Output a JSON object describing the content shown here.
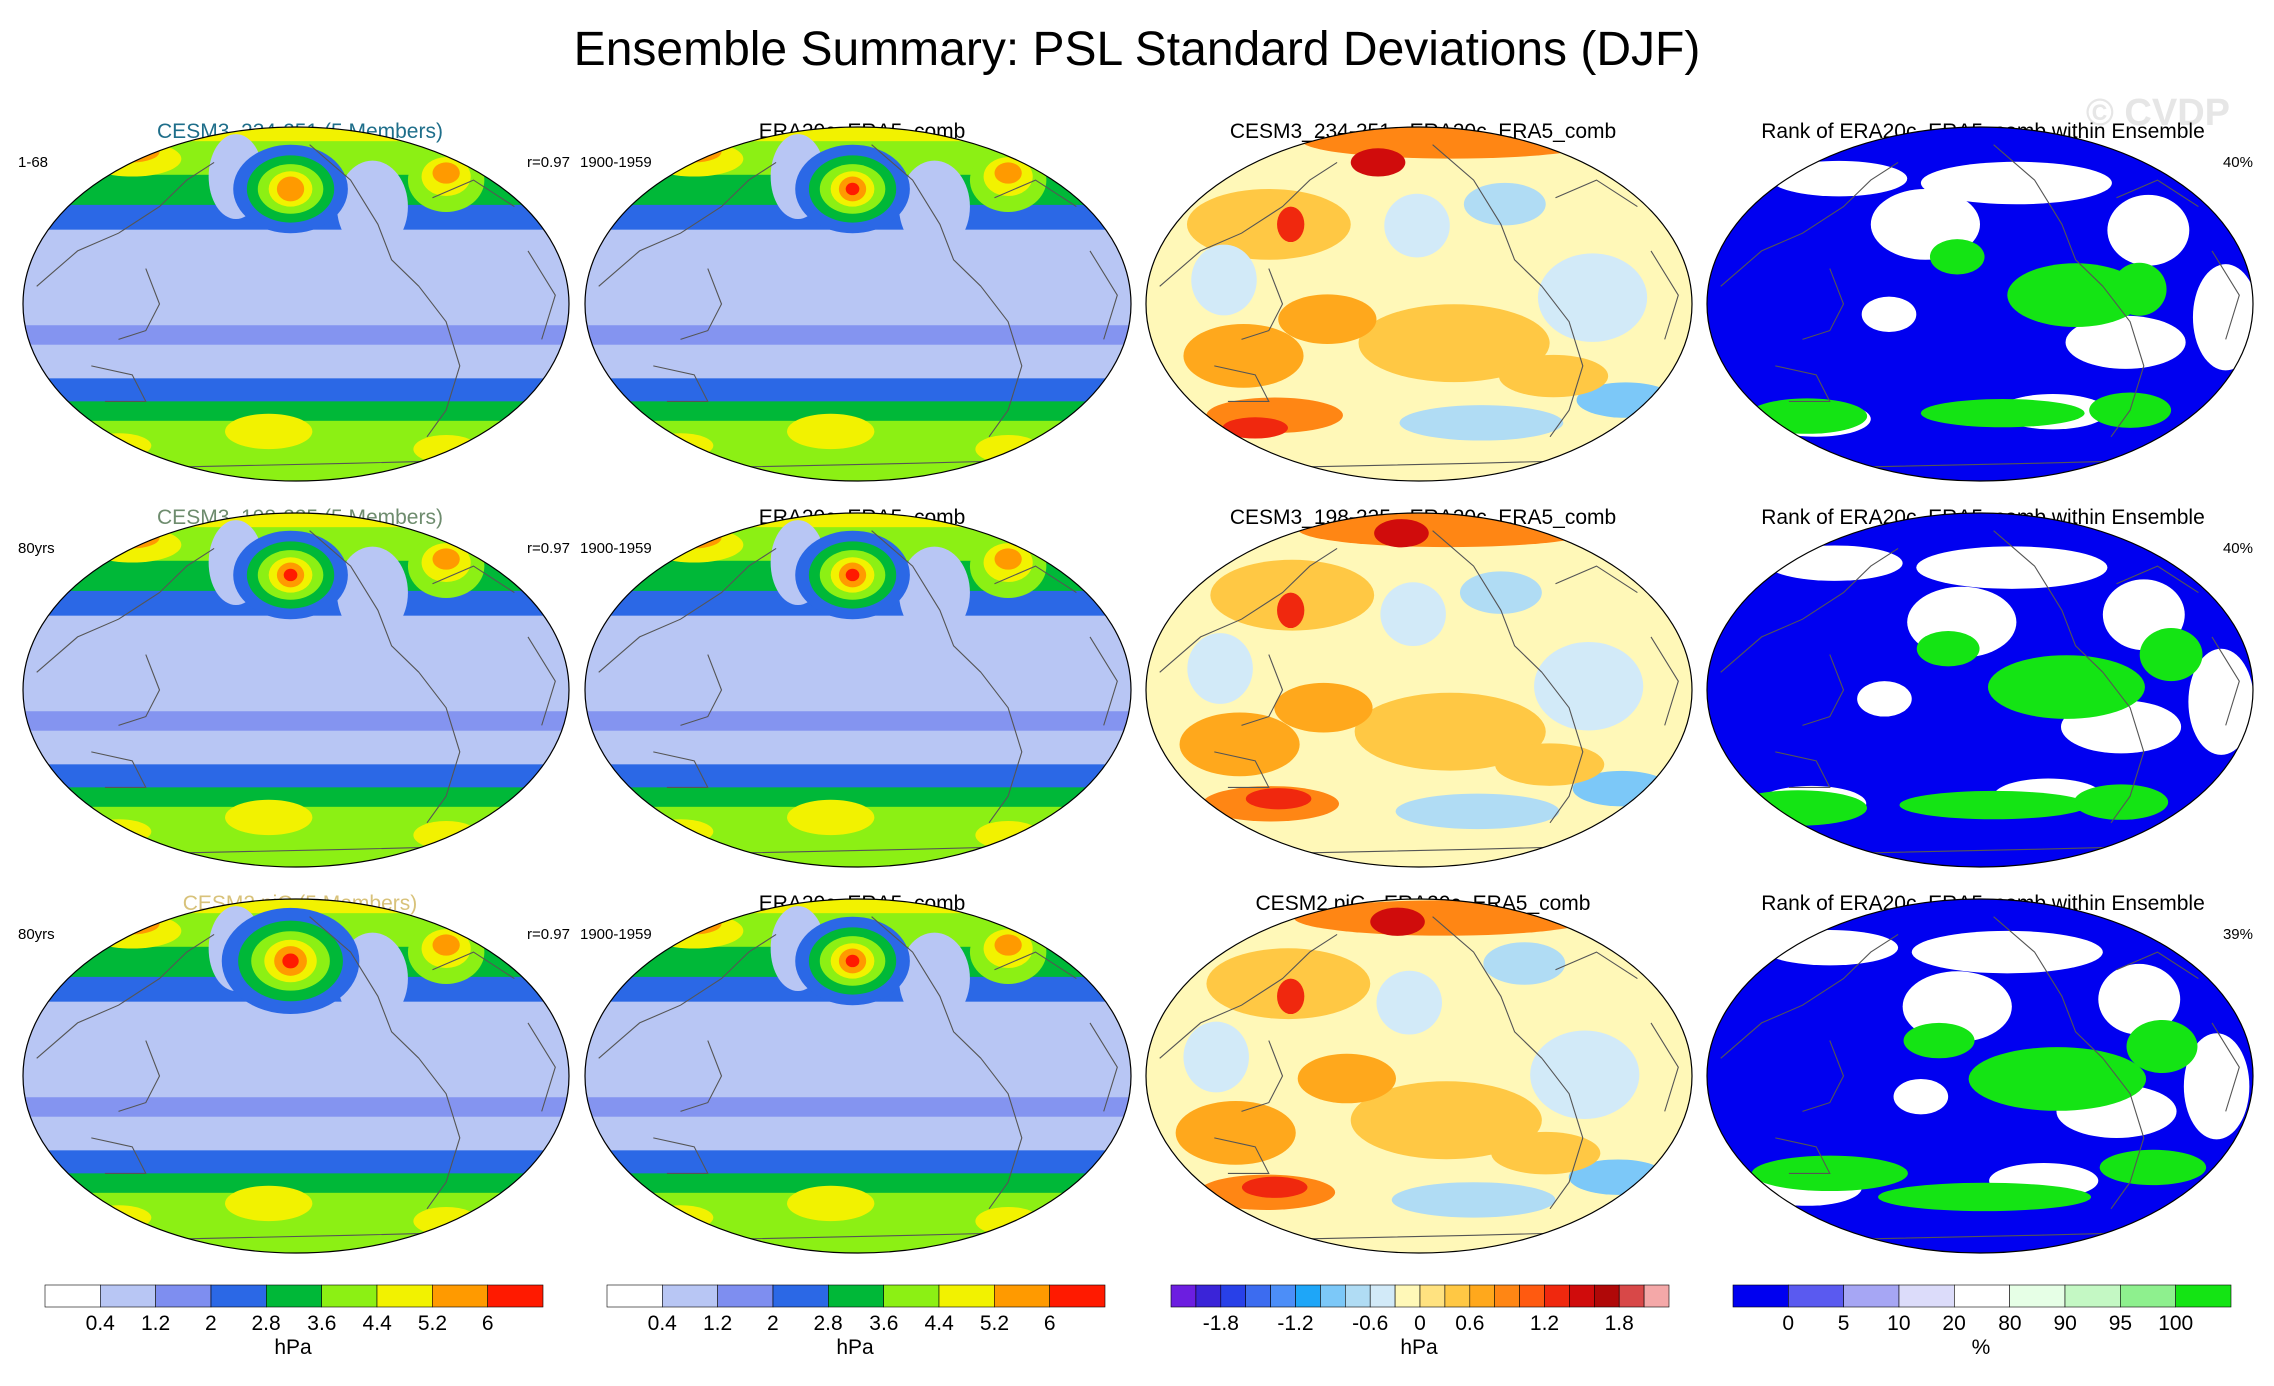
{
  "title": "Ensemble Summary: PSL Standard Deviations (DJF)",
  "watermark": "© CVDP",
  "colors": {
    "std_levels": [
      "#ffffff",
      "#b8c6f4",
      "#7e8ef0",
      "#2b68e6",
      "#00b838",
      "#8cf014",
      "#f2f200",
      "#ff9a00",
      "#ff1a00"
    ],
    "diff_levels": [
      "#6c1ee0",
      "#3a24d8",
      "#2840e8",
      "#3c6cf0",
      "#4c8ef8",
      "#1ea6f8",
      "#7cc8f8",
      "#b0dcf4",
      "#d2eaf8",
      "#fff8b8",
      "#ffe280",
      "#ffc844",
      "#ffa81c",
      "#ff8614",
      "#ff5a10",
      "#f0280e",
      "#d00c0c",
      "#b00808",
      "#d84848",
      "#f4a8a8"
    ],
    "rank_levels": [
      "#0000f0",
      "#5a5af0",
      "#a6a6f4",
      "#dcdcfa",
      "#ffffff",
      "#e6ffe6",
      "#c4f8c4",
      "#8ef08e",
      "#14e414"
    ]
  },
  "rows": [
    {
      "ensemble": {
        "title": "CESM3_234-251 (5 Members)",
        "title_color": "#1e6e8a",
        "left": "1-68",
        "right": "r=0.97"
      },
      "obs": {
        "title": "ERA20c_ERA5_comb",
        "left": "1900-1959"
      },
      "diff": {
        "title": "CESM3_234-251 - ERA20c_ERA5_comb"
      },
      "rank": {
        "title": "Rank of ERA20c_ERA5_comb within Ensemble",
        "right": "40%"
      }
    },
    {
      "ensemble": {
        "title": "CESM3_198-225 (5 Members)",
        "title_color": "#6e8c6e",
        "left": "80yrs",
        "right": "r=0.97"
      },
      "obs": {
        "title": "ERA20c_ERA5_comb",
        "left": "1900-1959"
      },
      "diff": {
        "title": "CESM3_198-225 - ERA20c_ERA5_comb"
      },
      "rank": {
        "title": "Rank of ERA20c_ERA5_comb within Ensemble",
        "right": "40%"
      }
    },
    {
      "ensemble": {
        "title": "CESM2 piC (5 Members)",
        "title_color": "#d8c27a",
        "left": "80yrs",
        "right": "r=0.97"
      },
      "obs": {
        "title": "ERA20c_ERA5_comb",
        "left": "1900-1959"
      },
      "diff": {
        "title": "CESM2 piC - ERA20c_ERA5_comb"
      },
      "rank": {
        "title": "Rank of ERA20c_ERA5_comb within Ensemble",
        "right": "39%"
      }
    }
  ],
  "labelbars": {
    "std": {
      "labels": [
        "0.4",
        "1.2",
        "2",
        "2.8",
        "3.6",
        "4.4",
        "5.2",
        "6"
      ],
      "unit": "hPa"
    },
    "diff": {
      "labels": [
        "-1.8",
        "-1.2",
        "-0.6",
        "0",
        "0.6",
        "1.2",
        "1.8"
      ],
      "unit": "hPa"
    },
    "rank": {
      "labels": [
        "0",
        "5",
        "10",
        "20",
        "80",
        "90",
        "95",
        "100"
      ],
      "unit": "%"
    }
  },
  "chart_data": {
    "type": "heatmap",
    "title": "Ensemble Summary: PSL Standard Deviations (DJF)",
    "layout": "3 rows x 4 columns of global map panels",
    "panels": [
      {
        "row": 1,
        "column": 1,
        "title": "CESM3_234-251 (5 Members)",
        "period": "1-68",
        "pattern_correlation": 0.97,
        "variable": "PSL standard deviation",
        "units": "hPa"
      },
      {
        "row": 1,
        "column": 2,
        "title": "ERA20c_ERA5_comb",
        "period": "1900-1959",
        "variable": "PSL standard deviation",
        "units": "hPa"
      },
      {
        "row": 1,
        "column": 3,
        "title": "CESM3_234-251 - ERA20c_ERA5_comb",
        "variable": "difference",
        "units": "hPa"
      },
      {
        "row": 1,
        "column": 4,
        "title": "Rank of ERA20c_ERA5_comb within Ensemble",
        "area_percent": 40,
        "units": "%"
      },
      {
        "row": 2,
        "column": 1,
        "title": "CESM3_198-225 (5 Members)",
        "period": "80yrs",
        "pattern_correlation": 0.97,
        "variable": "PSL standard deviation",
        "units": "hPa"
      },
      {
        "row": 2,
        "column": 2,
        "title": "ERA20c_ERA5_comb",
        "period": "1900-1959",
        "variable": "PSL standard deviation",
        "units": "hPa"
      },
      {
        "row": 2,
        "column": 3,
        "title": "CESM3_198-225 - ERA20c_ERA5_comb",
        "variable": "difference",
        "units": "hPa"
      },
      {
        "row": 2,
        "column": 4,
        "title": "Rank of ERA20c_ERA5_comb within Ensemble",
        "area_percent": 40,
        "units": "%"
      },
      {
        "row": 3,
        "column": 1,
        "title": "CESM2 piC (5 Members)",
        "period": "80yrs",
        "pattern_correlation": 0.97,
        "variable": "PSL standard deviation",
        "units": "hPa"
      },
      {
        "row": 3,
        "column": 2,
        "title": "ERA20c_ERA5_comb",
        "period": "1900-1959",
        "variable": "PSL standard deviation",
        "units": "hPa"
      },
      {
        "row": 3,
        "column": 3,
        "title": "CESM2 piC - ERA20c_ERA5_comb",
        "variable": "difference",
        "units": "hPa"
      },
      {
        "row": 3,
        "column": 4,
        "title": "Rank of ERA20c_ERA5_comb within Ensemble",
        "area_percent": 39,
        "units": "%"
      }
    ],
    "colorbars": {
      "std_hpa": {
        "levels": [
          0.4,
          1.2,
          2,
          2.8,
          3.6,
          4.4,
          5.2,
          6
        ],
        "unit": "hPa"
      },
      "diff_hpa": {
        "levels": [
          -1.8,
          -1.2,
          -0.6,
          0,
          0.6,
          1.2,
          1.8
        ],
        "unit": "hPa"
      },
      "rank_percent": {
        "levels": [
          0,
          5,
          10,
          20,
          80,
          90,
          95,
          100
        ],
        "unit": "%"
      }
    }
  }
}
